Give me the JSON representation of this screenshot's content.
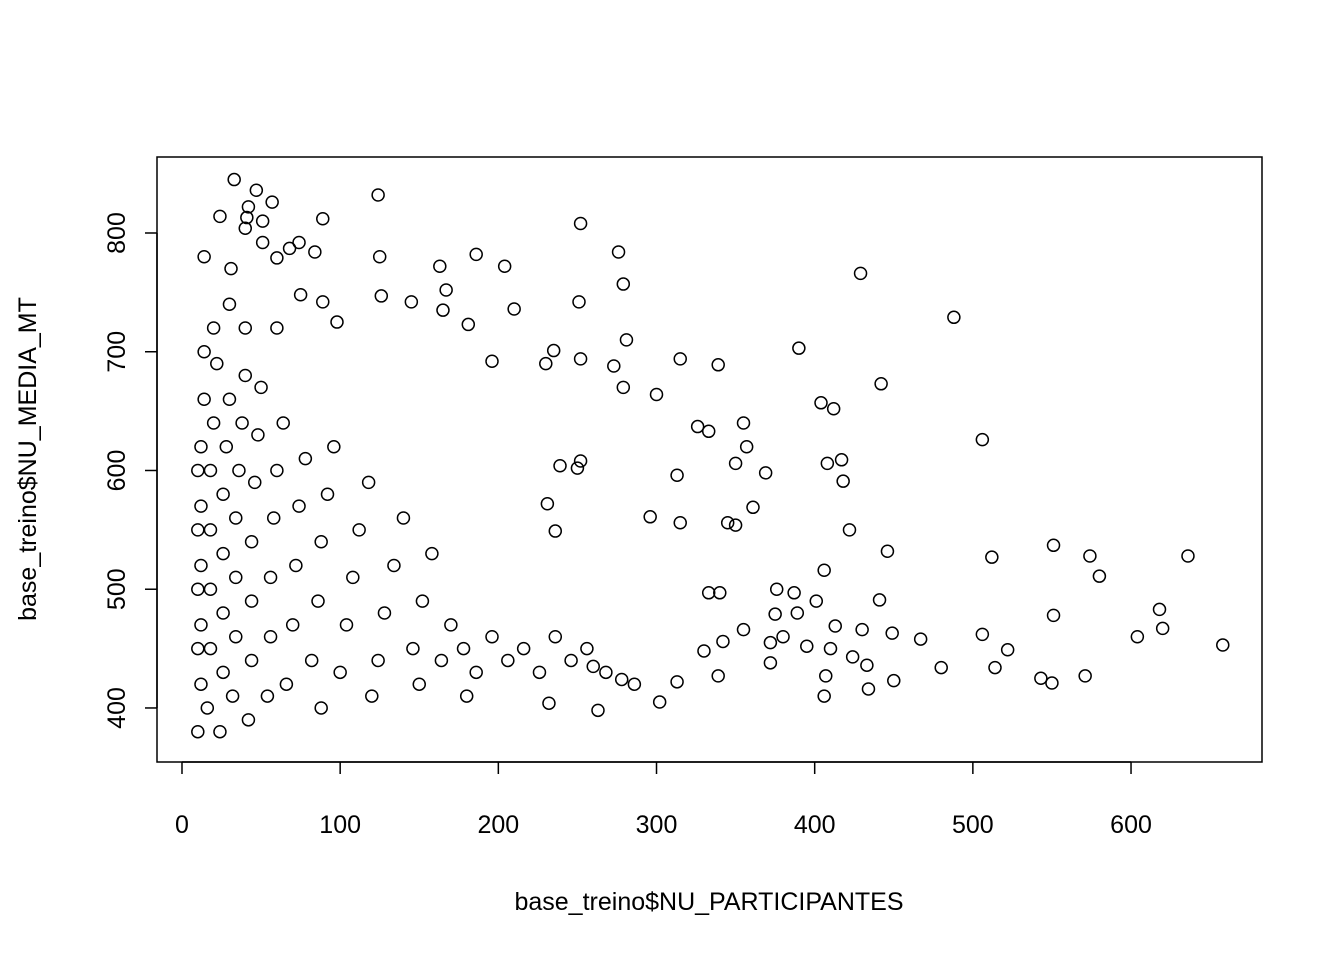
{
  "chart_data": {
    "type": "scatter",
    "x_label": "base_treino$NU_PARTICIPANTES",
    "y_label": "base_treino$NU_MEDIA_MT",
    "color": "#000000",
    "xlim": [
      -15.8,
      682.8
    ],
    "ylim": [
      354.5,
      864
    ],
    "xticks": [
      0,
      100,
      200,
      300,
      400,
      500,
      600
    ],
    "yticks": [
      400,
      500,
      600,
      700,
      800
    ],
    "x": [
      33,
      47,
      124,
      57,
      42,
      24,
      41,
      89,
      252,
      51,
      40,
      51,
      74,
      68,
      84,
      276,
      186,
      125,
      14,
      60,
      204,
      163,
      429,
      279,
      31,
      251,
      210,
      145,
      89,
      165,
      488,
      181,
      98,
      126,
      75,
      281,
      167,
      442,
      339,
      315,
      390,
      235,
      230,
      252,
      196,
      273,
      279,
      506,
      355,
      412,
      404,
      300,
      326,
      333,
      357,
      417,
      408,
      418,
      350,
      369,
      313,
      361,
      422,
      345,
      350,
      315,
      296,
      252,
      250,
      239,
      231,
      236,
      446,
      512,
      551,
      574,
      636,
      580,
      406,
      441,
      387,
      376,
      401,
      333,
      340,
      551,
      618,
      522,
      506,
      604,
      620,
      658,
      514,
      480,
      467,
      449,
      430,
      450,
      433,
      424,
      410,
      413,
      395,
      375,
      389,
      372,
      372,
      380,
      355,
      342,
      339,
      407,
      406,
      434,
      543,
      550,
      571,
      302,
      263,
      232,
      330,
      313,
      278,
      286,
      260,
      10,
      12,
      12,
      12,
      12,
      12,
      14,
      16,
      18,
      18,
      18,
      18,
      20,
      22,
      24,
      26,
      26,
      26,
      26,
      28,
      30,
      32,
      34,
      34,
      34,
      36,
      38,
      40,
      42,
      44,
      44,
      44,
      46,
      48,
      50,
      54,
      56,
      56,
      58,
      60,
      64,
      66,
      70,
      72,
      74,
      78,
      82,
      86,
      88,
      92,
      96,
      100,
      104,
      108,
      112,
      118,
      124,
      128,
      134,
      140,
      146,
      152,
      158,
      164,
      170,
      178,
      186,
      196,
      206,
      216,
      226,
      236,
      246,
      256,
      268,
      88,
      120,
      150,
      180,
      10,
      10,
      10,
      10,
      14,
      20,
      30,
      60,
      40
    ],
    "y": [
      845,
      836,
      832,
      826,
      822,
      814,
      813,
      812,
      808,
      810,
      804,
      792,
      792,
      787,
      784,
      784,
      782,
      780,
      780,
      779,
      772,
      772,
      766,
      757,
      770,
      742,
      736,
      742,
      742,
      735,
      729,
      723,
      725,
      747,
      748,
      710,
      752,
      673,
      689,
      694,
      703,
      701,
      690,
      694,
      692,
      688,
      670,
      626,
      640,
      652,
      657,
      664,
      637,
      633,
      620,
      609,
      606,
      591,
      606,
      598,
      596,
      569,
      550,
      556,
      554,
      556,
      561,
      608,
      602,
      604,
      572,
      549,
      532,
      527,
      537,
      528,
      528,
      511,
      516,
      491,
      497,
      500,
      490,
      497,
      497,
      478,
      483,
      449,
      462,
      460,
      467,
      453,
      434,
      434,
      458,
      463,
      466,
      423,
      436,
      443,
      450,
      469,
      452,
      479,
      480,
      455,
      438,
      460,
      466,
      456,
      427,
      427,
      410,
      416,
      425,
      421,
      427,
      405,
      398,
      404,
      448,
      422,
      424,
      420,
      435,
      380,
      420,
      470,
      520,
      570,
      620,
      660,
      400,
      450,
      500,
      550,
      600,
      640,
      690,
      380,
      430,
      480,
      530,
      580,
      620,
      660,
      410,
      460,
      510,
      560,
      600,
      640,
      680,
      390,
      440,
      490,
      540,
      590,
      630,
      670,
      410,
      460,
      510,
      560,
      600,
      640,
      420,
      470,
      520,
      570,
      610,
      440,
      490,
      540,
      580,
      620,
      430,
      470,
      510,
      550,
      590,
      440,
      480,
      520,
      560,
      450,
      490,
      530,
      440,
      470,
      450,
      430,
      460,
      440,
      450,
      430,
      460,
      440,
      450,
      430,
      400,
      410,
      420,
      410,
      500,
      600,
      450,
      550,
      700,
      720,
      740,
      720,
      720
    ]
  }
}
